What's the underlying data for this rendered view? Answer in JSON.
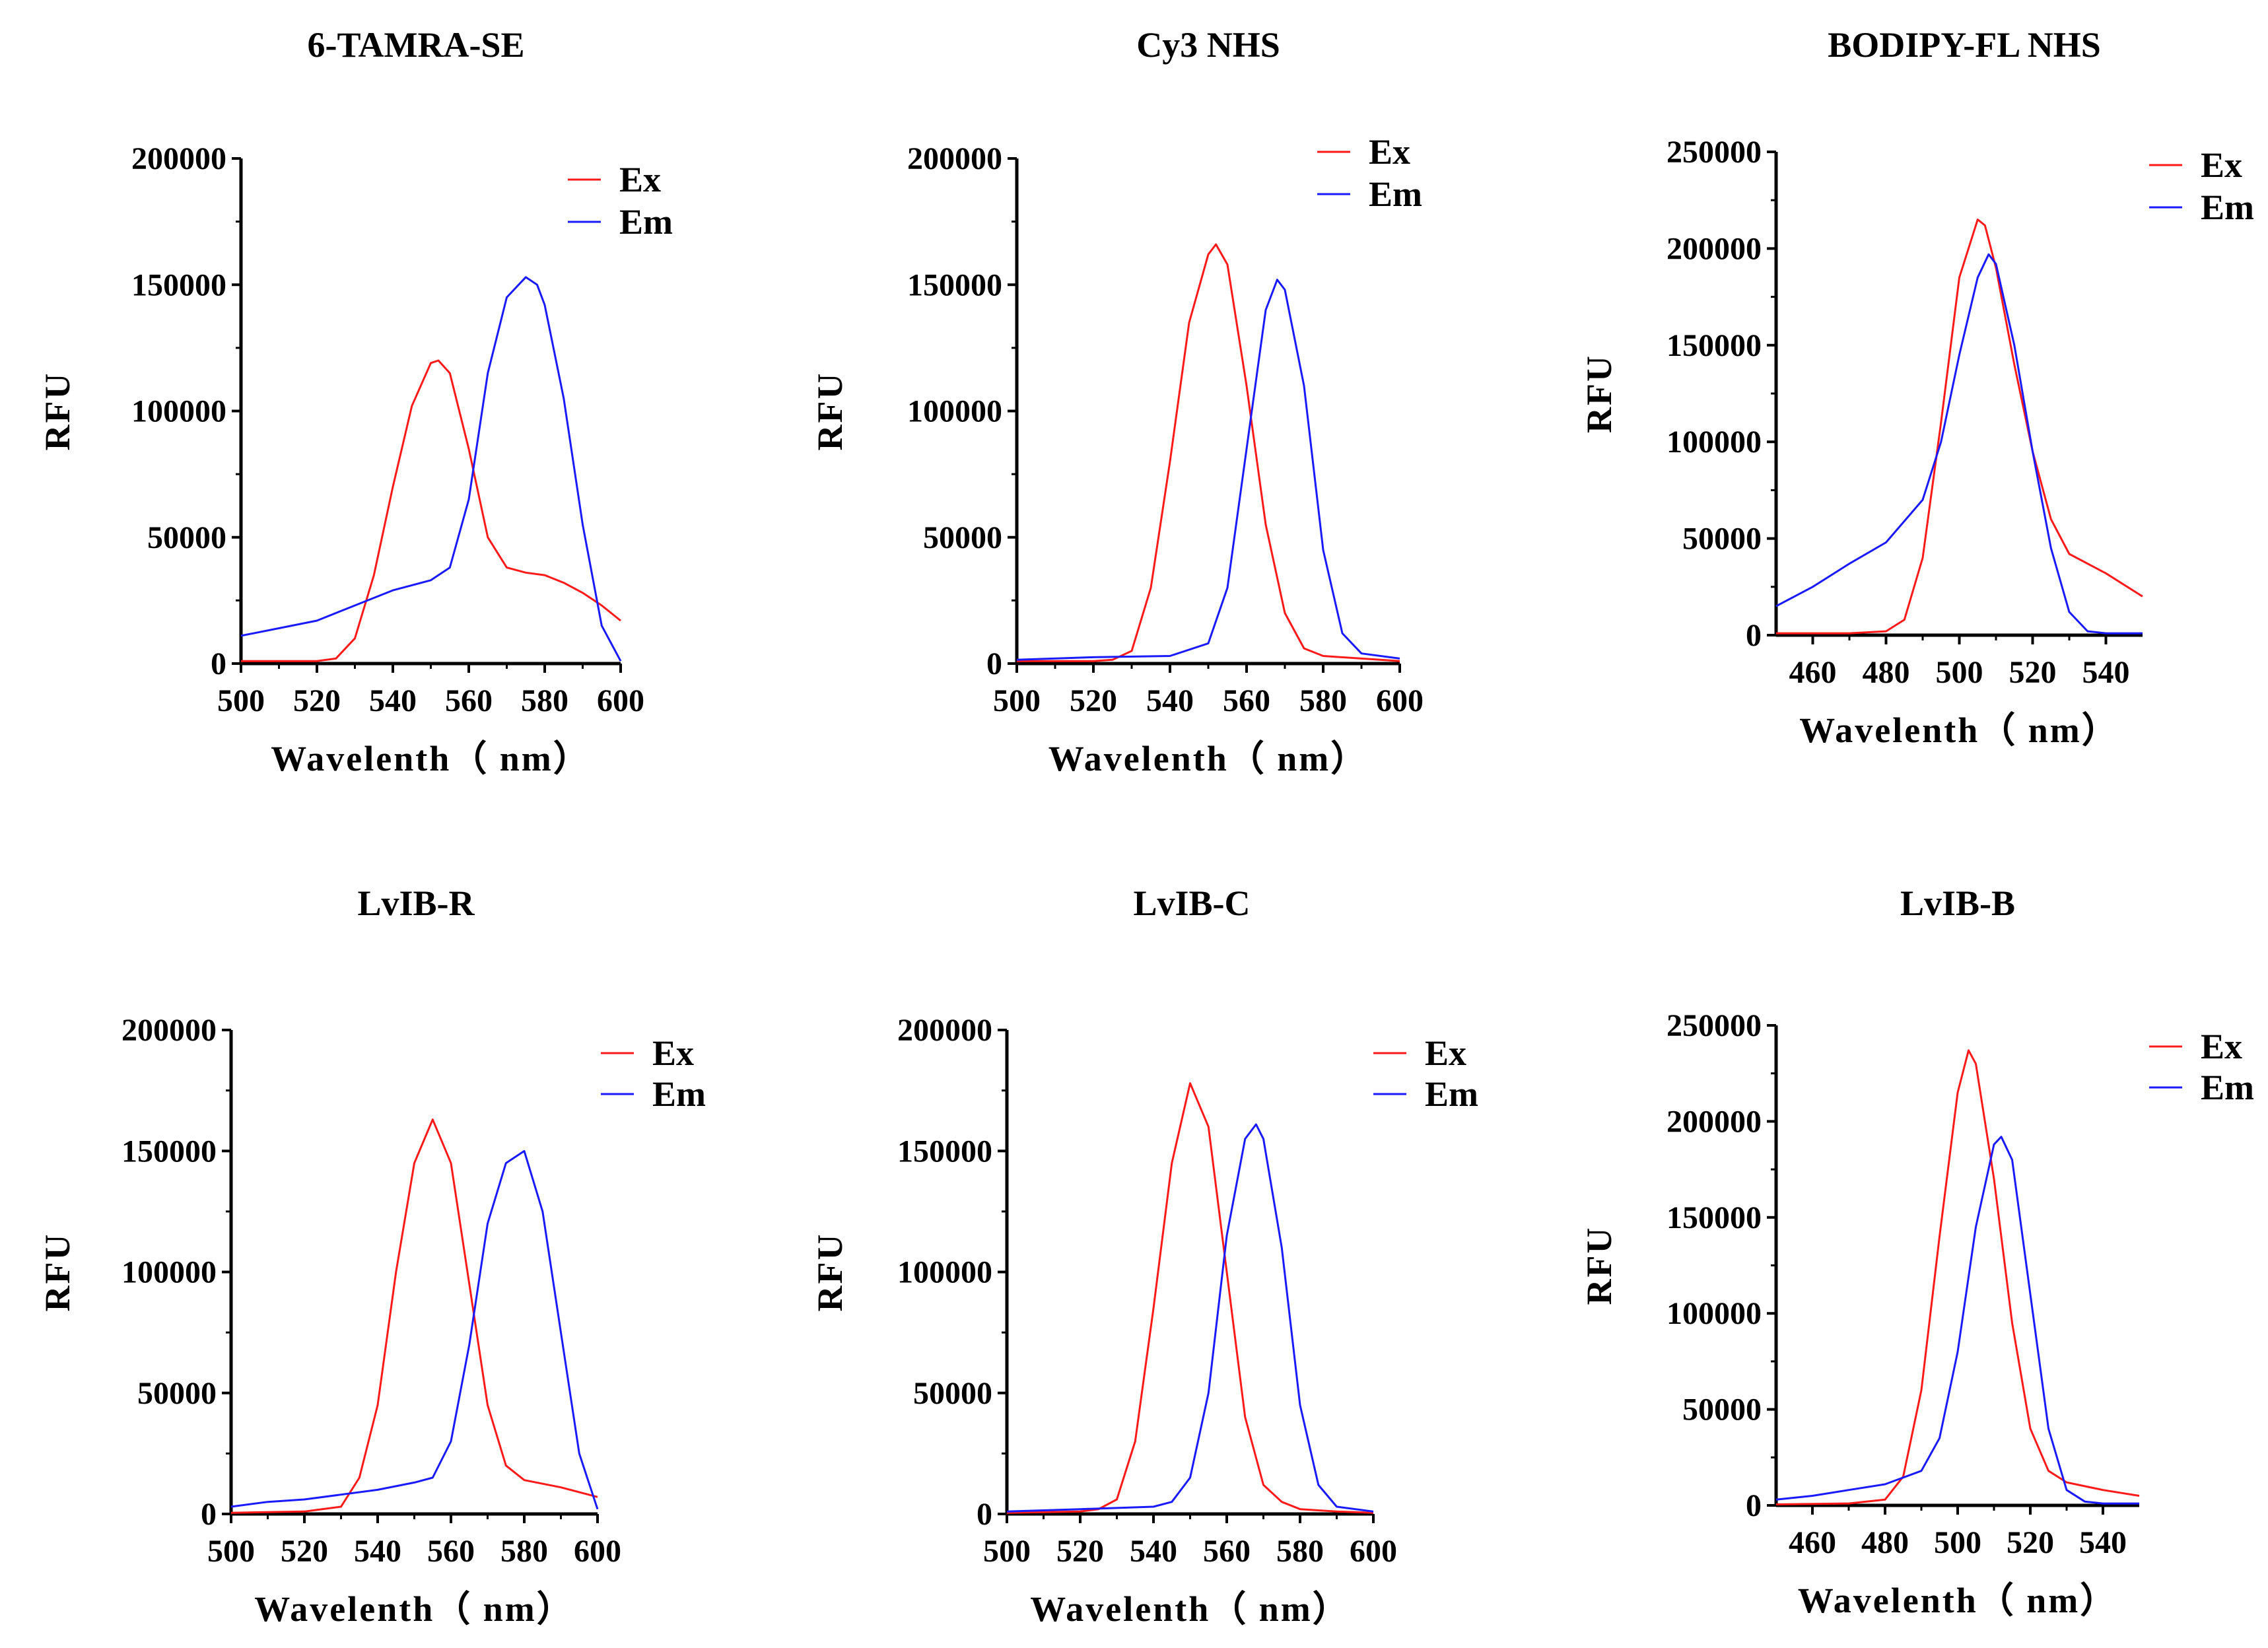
{
  "colors": {
    "ex": "#ff1a1a",
    "em": "#1a1aff"
  },
  "chart_data": [
    {
      "type": "line",
      "title": "6-TAMRA-SE",
      "xlabel": "Wavelenth（ nm）",
      "ylabel": "RFU",
      "xlim": [
        500,
        600
      ],
      "ylim": [
        0,
        200000
      ],
      "xticks": [
        500,
        520,
        540,
        560,
        580,
        600
      ],
      "yticks": [
        0,
        50000,
        100000,
        150000,
        200000
      ],
      "xtick_labels": [
        "500",
        "520",
        "540",
        "560",
        "580",
        "600"
      ],
      "ytick_labels": [
        "0",
        "50000",
        "100000",
        "150000",
        "200000"
      ],
      "legend_position": "top-right",
      "series": [
        {
          "name": "Ex",
          "x": [
            500,
            520,
            525,
            530,
            535,
            540,
            545,
            550,
            552,
            555,
            560,
            565,
            570,
            575,
            580,
            585,
            590,
            595,
            600
          ],
          "y": [
            1000,
            1000,
            2000,
            10000,
            35000,
            70000,
            102000,
            119000,
            120000,
            115000,
            85000,
            50000,
            38000,
            36000,
            35000,
            32000,
            28000,
            23000,
            17000
          ]
        },
        {
          "name": "Em",
          "x": [
            500,
            510,
            520,
            530,
            540,
            550,
            555,
            560,
            565,
            570,
            575,
            578,
            580,
            585,
            590,
            595,
            600
          ],
          "y": [
            11000,
            14000,
            17000,
            23000,
            29000,
            33000,
            38000,
            65000,
            115000,
            145000,
            153000,
            150000,
            142000,
            105000,
            55000,
            15000,
            1000
          ]
        }
      ]
    },
    {
      "type": "line",
      "title": "Cy3 NHS",
      "xlabel": "Wavelenth（ nm）",
      "ylabel": "RFU",
      "xlim": [
        500,
        600
      ],
      "ylim": [
        0,
        200000
      ],
      "xticks": [
        500,
        520,
        540,
        560,
        580,
        600
      ],
      "yticks": [
        0,
        50000,
        100000,
        150000,
        200000
      ],
      "xtick_labels": [
        "500",
        "520",
        "540",
        "560",
        "580",
        "600"
      ],
      "ytick_labels": [
        "0",
        "50000",
        "100000",
        "150000",
        "200000"
      ],
      "legend_position": "top-right",
      "series": [
        {
          "name": "Ex",
          "x": [
            500,
            520,
            525,
            530,
            535,
            540,
            545,
            550,
            552,
            555,
            560,
            565,
            570,
            575,
            580,
            590,
            600
          ],
          "y": [
            1000,
            1000,
            1500,
            5000,
            30000,
            80000,
            135000,
            162000,
            166000,
            158000,
            110000,
            55000,
            20000,
            6000,
            3000,
            2000,
            1000
          ]
        },
        {
          "name": "Em",
          "x": [
            500,
            520,
            540,
            550,
            555,
            560,
            565,
            568,
            570,
            575,
            580,
            585,
            590,
            600
          ],
          "y": [
            1500,
            2500,
            3000,
            8000,
            30000,
            85000,
            140000,
            152000,
            148000,
            110000,
            45000,
            12000,
            4000,
            2000
          ]
        }
      ]
    },
    {
      "type": "line",
      "title": "BODIPY-FL NHS",
      "xlabel": "Wavelenth（ nm）",
      "ylabel": "RFU",
      "xlim": [
        450,
        550
      ],
      "ylim": [
        0,
        250000
      ],
      "xticks": [
        460,
        480,
        500,
        520,
        540
      ],
      "yticks": [
        0,
        50000,
        100000,
        150000,
        200000,
        250000
      ],
      "xtick_labels": [
        "460",
        "480",
        "500",
        "520",
        "540"
      ],
      "ytick_labels": [
        "0",
        "50000",
        "100000",
        "150000",
        "200000",
        "250000"
      ],
      "legend_position": "top-right",
      "series": [
        {
          "name": "Ex",
          "x": [
            450,
            470,
            480,
            485,
            490,
            495,
            500,
            505,
            507,
            510,
            515,
            520,
            525,
            530,
            540,
            550
          ],
          "y": [
            1000,
            1000,
            2000,
            8000,
            40000,
            110000,
            185000,
            215000,
            212000,
            190000,
            140000,
            95000,
            60000,
            42000,
            32000,
            20000
          ]
        },
        {
          "name": "Em",
          "x": [
            450,
            460,
            470,
            480,
            490,
            495,
            500,
            505,
            508,
            510,
            515,
            520,
            525,
            530,
            535,
            540,
            550
          ],
          "y": [
            15000,
            25000,
            37000,
            48000,
            70000,
            100000,
            145000,
            185000,
            197000,
            192000,
            150000,
            95000,
            45000,
            12000,
            2000,
            1000,
            1000
          ]
        }
      ]
    },
    {
      "type": "line",
      "title": "LvIB-R",
      "xlabel": "Wavelenth（ nm）",
      "ylabel": "RFU",
      "xlim": [
        500,
        600
      ],
      "ylim": [
        0,
        200000
      ],
      "xticks": [
        500,
        520,
        540,
        560,
        580,
        600
      ],
      "yticks": [
        0,
        50000,
        100000,
        150000,
        200000
      ],
      "xtick_labels": [
        "500",
        "520",
        "540",
        "560",
        "580",
        "600"
      ],
      "ytick_labels": [
        "0",
        "50000",
        "100000",
        "150000",
        "200000"
      ],
      "legend_position": "top-right",
      "series": [
        {
          "name": "Ex",
          "x": [
            500,
            520,
            530,
            535,
            540,
            545,
            550,
            555,
            560,
            565,
            570,
            575,
            580,
            590,
            600
          ],
          "y": [
            500,
            1000,
            3000,
            15000,
            45000,
            100000,
            145000,
            163000,
            145000,
            95000,
            45000,
            20000,
            14000,
            11000,
            7000
          ]
        },
        {
          "name": "Em",
          "x": [
            500,
            510,
            520,
            530,
            540,
            550,
            555,
            560,
            565,
            570,
            575,
            580,
            585,
            590,
            595,
            600
          ],
          "y": [
            3000,
            5000,
            6000,
            8000,
            10000,
            13000,
            15000,
            30000,
            70000,
            120000,
            145000,
            150000,
            125000,
            75000,
            25000,
            2000
          ]
        }
      ]
    },
    {
      "type": "line",
      "title": "LvIB-C",
      "xlabel": "Wavelenth（ nm）",
      "ylabel": "RFU",
      "xlim": [
        500,
        600
      ],
      "ylim": [
        0,
        200000
      ],
      "xticks": [
        500,
        520,
        540,
        560,
        580,
        600
      ],
      "yticks": [
        0,
        50000,
        100000,
        150000,
        200000
      ],
      "xtick_labels": [
        "500",
        "520",
        "540",
        "560",
        "580",
        "600"
      ],
      "ytick_labels": [
        "0",
        "50000",
        "100000",
        "150000",
        "200000"
      ],
      "legend_position": "top-right",
      "series": [
        {
          "name": "Ex",
          "x": [
            500,
            520,
            525,
            530,
            535,
            540,
            545,
            550,
            555,
            560,
            565,
            570,
            575,
            580,
            590,
            600
          ],
          "y": [
            500,
            1000,
            2000,
            6000,
            30000,
            85000,
            145000,
            178000,
            160000,
            100000,
            40000,
            12000,
            5000,
            2000,
            1000,
            500
          ]
        },
        {
          "name": "Em",
          "x": [
            500,
            520,
            540,
            545,
            550,
            555,
            560,
            565,
            568,
            570,
            575,
            580,
            585,
            590,
            600
          ],
          "y": [
            1000,
            2000,
            3000,
            5000,
            15000,
            50000,
            115000,
            155000,
            161000,
            155000,
            110000,
            45000,
            12000,
            3000,
            1000
          ]
        }
      ]
    },
    {
      "type": "line",
      "title": "LvIB-B",
      "xlabel": "Wavelenth（ nm）",
      "ylabel": "RFU",
      "xlim": [
        450,
        550
      ],
      "ylim": [
        0,
        250000
      ],
      "xticks": [
        460,
        480,
        500,
        520,
        540
      ],
      "yticks": [
        0,
        50000,
        100000,
        150000,
        200000,
        250000
      ],
      "xtick_labels": [
        "460",
        "480",
        "500",
        "520",
        "540"
      ],
      "ytick_labels": [
        "0",
        "50000",
        "100000",
        "150000",
        "200000",
        "250000"
      ],
      "legend_position": "top-right",
      "series": [
        {
          "name": "Ex",
          "x": [
            450,
            470,
            480,
            485,
            490,
            495,
            500,
            503,
            505,
            510,
            515,
            520,
            525,
            530,
            540,
            550
          ],
          "y": [
            500,
            1000,
            3000,
            15000,
            60000,
            140000,
            215000,
            237000,
            230000,
            170000,
            95000,
            40000,
            18000,
            12000,
            8000,
            5000
          ]
        },
        {
          "name": "Em",
          "x": [
            450,
            460,
            470,
            480,
            490,
            495,
            500,
            505,
            510,
            512,
            515,
            520,
            525,
            530,
            535,
            540,
            550
          ],
          "y": [
            3000,
            5000,
            8000,
            11000,
            18000,
            35000,
            80000,
            145000,
            188000,
            192000,
            180000,
            110000,
            40000,
            8000,
            2000,
            1000,
            1000
          ]
        }
      ]
    }
  ]
}
